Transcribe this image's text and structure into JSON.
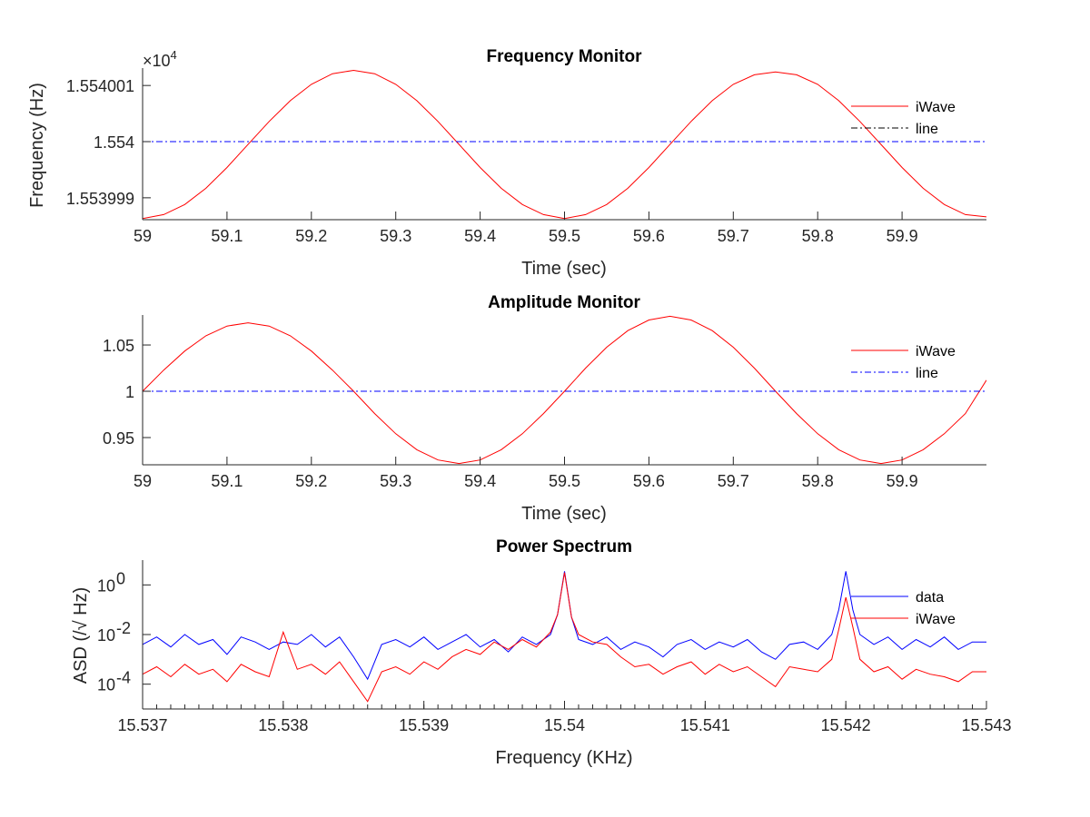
{
  "chart_data": [
    {
      "type": "line",
      "title": "Frequency Monitor",
      "xlabel": "Time (sec)",
      "ylabel": "Frequency (Hz)",
      "y_exponent_label": "×10",
      "y_exponent_power": "4",
      "xlim": [
        59,
        60
      ],
      "ylim": [
        15539.9861,
        15540.0131
      ],
      "xticks": [
        59,
        59.1,
        59.2,
        59.3,
        59.4,
        59.5,
        59.6,
        59.7,
        59.8,
        59.9
      ],
      "xtick_labels": [
        "59",
        "59.1",
        "59.2",
        "59.3",
        "59.4",
        "59.5",
        "59.6",
        "59.7",
        "59.8",
        "59.9"
      ],
      "yticks": [
        15539.99,
        15540,
        15540.01
      ],
      "ytick_labels": [
        "1.553999",
        "1.554",
        "1.554001"
      ],
      "legend_position": "right",
      "series": [
        {
          "name": "iWave",
          "color": "#ff0000",
          "style": "solid",
          "x": [
            59,
            59.025,
            59.05,
            59.075,
            59.1,
            59.125,
            59.15,
            59.175,
            59.2,
            59.225,
            59.25,
            59.275,
            59.3,
            59.325,
            59.35,
            59.375,
            59.4,
            59.425,
            59.45,
            59.475,
            59.5,
            59.525,
            59.55,
            59.575,
            59.6,
            59.625,
            59.65,
            59.675,
            59.7,
            59.725,
            59.75,
            59.775,
            59.8,
            59.825,
            59.85,
            59.875,
            59.9,
            59.925,
            59.95,
            59.975,
            60
          ],
          "y": [
            15539.9863,
            15539.987,
            15539.9888,
            15539.9917,
            15539.9954,
            15539.9995,
            15540.0036,
            15540.0073,
            15540.0102,
            15540.0121,
            15540.0127,
            15540.0121,
            15540.0102,
            15540.0073,
            15540.0036,
            15539.9995,
            15539.9954,
            15539.9917,
            15539.9888,
            15539.987,
            15539.9863,
            15539.987,
            15539.9888,
            15539.9917,
            15539.9954,
            15539.9995,
            15540.0036,
            15540.0073,
            15540.0102,
            15540.0119,
            15540.0124,
            15540.0119,
            15540.0102,
            15540.0073,
            15540.0036,
            15539.9995,
            15539.9954,
            15539.9917,
            15539.9888,
            15539.987,
            15539.9866
          ]
        },
        {
          "name": "line",
          "color": "#0000ff",
          "legend_color": "#000000",
          "style": "dashdot",
          "x": [
            59,
            60
          ],
          "y": [
            15540,
            15540
          ]
        }
      ]
    },
    {
      "type": "line",
      "title": "Amplitude Monitor",
      "xlabel": "Time (sec)",
      "ylabel": "",
      "xlim": [
        59,
        60
      ],
      "ylim": [
        0.9206,
        1.0824
      ],
      "xticks": [
        59,
        59.1,
        59.2,
        59.3,
        59.4,
        59.5,
        59.6,
        59.7,
        59.8,
        59.9
      ],
      "xtick_labels": [
        "59",
        "59.1",
        "59.2",
        "59.3",
        "59.4",
        "59.5",
        "59.6",
        "59.7",
        "59.8",
        "59.9"
      ],
      "yticks": [
        0.95,
        1,
        1.05
      ],
      "ytick_labels": [
        "0.95",
        "1",
        "1.05"
      ],
      "legend_position": "right",
      "series": [
        {
          "name": "iWave",
          "color": "#ff0000",
          "style": "solid",
          "x": [
            59,
            59.025,
            59.05,
            59.075,
            59.1,
            59.125,
            59.15,
            59.175,
            59.2,
            59.225,
            59.25,
            59.275,
            59.3,
            59.325,
            59.35,
            59.375,
            59.4,
            59.425,
            59.45,
            59.475,
            59.5,
            59.525,
            59.55,
            59.575,
            59.6,
            59.625,
            59.65,
            59.675,
            59.7,
            59.725,
            59.75,
            59.775,
            59.8,
            59.825,
            59.85,
            59.875,
            59.9,
            59.925,
            59.95,
            59.975,
            60
          ],
          "y": [
            1.0,
            1.0229,
            1.0435,
            1.0599,
            1.0704,
            1.074,
            1.0704,
            1.0599,
            1.0435,
            1.0229,
            1.0,
            0.9759,
            0.9541,
            0.9369,
            0.9258,
            0.922,
            0.9258,
            0.9369,
            0.9541,
            0.9759,
            1.0,
            1.025,
            1.0476,
            1.0655,
            1.077,
            1.081,
            1.077,
            1.0655,
            1.0476,
            1.025,
            1.0,
            0.9759,
            0.9541,
            0.9369,
            0.9258,
            0.922,
            0.9258,
            0.9369,
            0.9541,
            0.9759,
            1.012
          ]
        },
        {
          "name": "line",
          "color": "#0000ff",
          "style": "dashdot",
          "x": [
            59,
            60
          ],
          "y": [
            1,
            1
          ]
        }
      ]
    },
    {
      "type": "line",
      "title": "Power Spectrum",
      "xlabel": "Frequency (KHz)",
      "ylabel": "ASD (/√ Hz)",
      "yscale": "log",
      "xlim": [
        15.537,
        15.543
      ],
      "ylim_log10": [
        -5,
        1
      ],
      "xticks": [
        15.537,
        15.538,
        15.539,
        15.54,
        15.541,
        15.542,
        15.543
      ],
      "xtick_labels": [
        "15.537",
        "15.538",
        "15.539",
        "15.54",
        "15.541",
        "15.542",
        "15.543"
      ],
      "yticks_log10": [
        -4,
        -2,
        0
      ],
      "ytick_base": "10",
      "ytick_exponents": [
        "-4",
        "-2",
        "0"
      ],
      "legend_position": "right",
      "x": [
        15.537,
        15.5371,
        15.5372,
        15.5373,
        15.5374,
        15.5375,
        15.5376,
        15.5377,
        15.5378,
        15.5379,
        15.538,
        15.5381,
        15.5382,
        15.5383,
        15.5384,
        15.5385,
        15.5386,
        15.5387,
        15.5388,
        15.5389,
        15.539,
        15.5391,
        15.5392,
        15.5393,
        15.5394,
        15.5395,
        15.5396,
        15.5397,
        15.5398,
        15.5399,
        15.53995,
        15.54,
        15.54005,
        15.5401,
        15.5402,
        15.5403,
        15.5404,
        15.5405,
        15.5406,
        15.5407,
        15.5408,
        15.5409,
        15.541,
        15.5411,
        15.5412,
        15.5413,
        15.5414,
        15.5415,
        15.5416,
        15.5417,
        15.5418,
        15.5419,
        15.54195,
        15.542,
        15.54205,
        15.5421,
        15.5422,
        15.5423,
        15.5424,
        15.5425,
        15.5426,
        15.5427,
        15.5428,
        15.5429,
        15.543
      ],
      "series": [
        {
          "name": "data",
          "color": "#0000ff",
          "style": "solid",
          "log10_values": [
            -2.4,
            -2.1,
            -2.5,
            -2.0,
            -2.4,
            -2.2,
            -2.8,
            -2.1,
            -2.3,
            -2.6,
            -2.3,
            -2.4,
            -2.0,
            -2.5,
            -2.1,
            -2.9,
            -3.8,
            -2.4,
            -2.2,
            -2.5,
            -2.1,
            -2.6,
            -2.3,
            -2.0,
            -2.5,
            -2.2,
            -2.7,
            -2.1,
            -2.4,
            -2.0,
            -1.2,
            0.55,
            -1.3,
            -2.2,
            -2.4,
            -2.1,
            -2.6,
            -2.3,
            -2.5,
            -2.9,
            -2.4,
            -2.2,
            -2.6,
            -2.3,
            -2.5,
            -2.2,
            -2.7,
            -3.0,
            -2.4,
            -2.3,
            -2.6,
            -2.0,
            -1.0,
            0.55,
            -1.0,
            -2.0,
            -2.4,
            -2.1,
            -2.6,
            -2.2,
            -2.5,
            -2.1,
            -2.6,
            -2.3,
            -2.3
          ]
        },
        {
          "name": "iWave",
          "color": "#ff0000",
          "style": "solid",
          "log10_values": [
            -3.6,
            -3.3,
            -3.7,
            -3.2,
            -3.6,
            -3.4,
            -3.9,
            -3.2,
            -3.5,
            -3.7,
            -1.9,
            -3.4,
            -3.2,
            -3.6,
            -3.1,
            -3.9,
            -4.7,
            -3.5,
            -3.3,
            -3.6,
            -3.1,
            -3.4,
            -2.9,
            -2.6,
            -2.8,
            -2.3,
            -2.6,
            -2.2,
            -2.5,
            -1.9,
            -1.2,
            0.5,
            -1.3,
            -2.0,
            -2.3,
            -2.4,
            -2.9,
            -3.3,
            -3.2,
            -3.6,
            -3.3,
            -3.1,
            -3.6,
            -3.2,
            -3.5,
            -3.3,
            -3.7,
            -4.1,
            -3.3,
            -3.4,
            -3.5,
            -3.0,
            -1.8,
            -0.5,
            -1.7,
            -3.0,
            -3.5,
            -3.3,
            -3.8,
            -3.4,
            -3.6,
            -3.7,
            -3.9,
            -3.5,
            -3.5
          ]
        }
      ]
    }
  ]
}
